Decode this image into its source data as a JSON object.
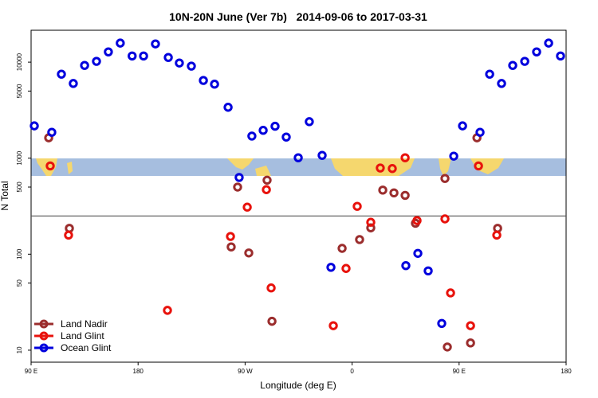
{
  "chart_data": {
    "type": "scatter",
    "title": "10N-20N June (Ver 7b)   2014-09-06 to 2017-03-31",
    "xlabel": "Longitude (deg E)",
    "ylabel": "N Total",
    "xlim": [
      90,
      540
    ],
    "xticks": [
      {
        "value": 90,
        "label": "90 E"
      },
      180,
      {
        "value": 270,
        "label": "90 W"
      },
      {
        "value": 360,
        "label": "0"
      },
      {
        "value": 450,
        "label": "90 E"
      },
      {
        "value": 540,
        "label": "180"
      }
    ],
    "ylim": [
      7.5,
      21500
    ],
    "yticks": [
      10,
      50,
      100,
      500,
      1000,
      5000,
      10000
    ],
    "log_y": true,
    "hline": 250,
    "legend": "bottom-left",
    "series": [
      {
        "name": "Land Nadir",
        "color": "#9b2d2d",
        "x": [
          104.8,
          122.2,
          258.3,
          263.7,
          273.1,
          288.5,
          292.6,
          351.6,
          366.3,
          375.7,
          385.8,
          395.2,
          404.6,
          413.3,
          438.1,
          440.1,
          459.6,
          465,
          482.4
        ],
        "values": [
          1630,
          186,
          119,
          500,
          103,
          590,
          20,
          115,
          142,
          188,
          465,
          435,
          410,
          210,
          615,
          10.8,
          11.9,
          1630,
          186
        ]
      },
      {
        "name": "Land Glint",
        "color": "#e8120c",
        "x": [
          106.1,
          121.5,
          204.7,
          257.7,
          271.8,
          287.9,
          291.9,
          344.2,
          354.9,
          364.3,
          375.7,
          383.7,
          393.8,
          404.6,
          414.6,
          438.1,
          442.8,
          459.6,
          466.3,
          481.7
        ],
        "values": [
          830,
          158,
          26,
          153,
          309,
          470,
          44.5,
          18,
          71,
          315,
          215,
          790,
          780,
          1010,
          224,
          233,
          39.5,
          18,
          830,
          158
        ]
      },
      {
        "name": "Ocean Glint",
        "color": "#0000dd",
        "x": [
          92.7,
          107.4,
          115.5,
          125.5,
          135,
          145,
          155,
          165,
          175,
          184.6,
          194.6,
          205.4,
          214.7,
          224.8,
          234.9,
          244.3,
          255.7,
          265,
          275.7,
          285.2,
          295.2,
          304.6,
          314.7,
          324,
          334.8,
          342.2,
          405.2,
          415.3,
          424,
          435.4,
          445.5,
          452.9,
          467.6,
          475.7,
          485.7,
          495.1,
          505.2,
          515.2,
          525.3,
          535.3
        ],
        "values": [
          2170,
          1860,
          7500,
          6000,
          9250,
          10200,
          12800,
          15800,
          11600,
          11600,
          15500,
          11200,
          9800,
          9100,
          6450,
          5900,
          3390,
          630,
          1700,
          1950,
          2150,
          1660,
          1010,
          2400,
          1070,
          73,
          76,
          102,
          67,
          19,
          1050,
          2170,
          1860,
          7500,
          6000,
          9250,
          10200,
          12800,
          15800,
          11600
        ]
      }
    ]
  }
}
